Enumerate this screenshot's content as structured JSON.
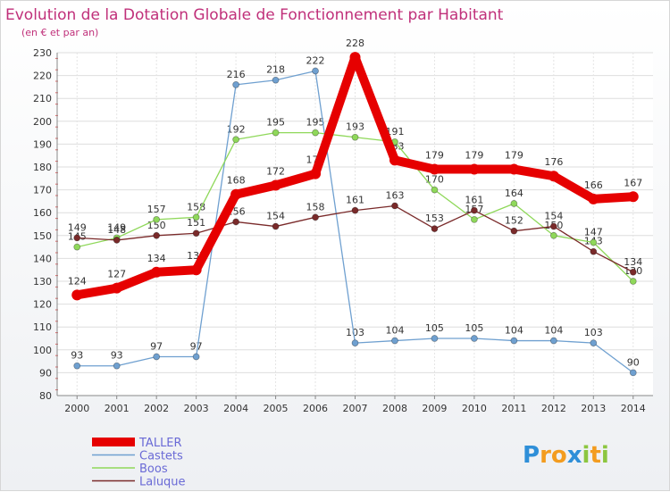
{
  "chart_data": {
    "type": "line",
    "title": "Evolution de la Dotation Globale de Fonctionnement par Habitant",
    "subtitle": "(en € et par an)",
    "categories": [
      "2000",
      "2001",
      "2002",
      "2003",
      "2004",
      "2005",
      "2006",
      "2007",
      "2008",
      "2009",
      "2010",
      "2011",
      "2012",
      "2013",
      "2014"
    ],
    "ylim": [
      80,
      230
    ],
    "yticks": [
      80,
      90,
      100,
      110,
      120,
      130,
      140,
      150,
      160,
      170,
      180,
      190,
      200,
      210,
      220,
      230
    ],
    "grid": true,
    "legend_position": "bottom-left",
    "series": [
      {
        "name": "TALLER",
        "color": "#e60000",
        "values": [
          124,
          127,
          134,
          135,
          168,
          172,
          177,
          228,
          183,
          179,
          179,
          179,
          176,
          166,
          167
        ]
      },
      {
        "name": "Castets",
        "color": "#6fa0d0",
        "values": [
          93,
          93,
          97,
          97,
          216,
          218,
          222,
          103,
          104,
          105,
          105,
          104,
          104,
          103,
          90
        ]
      },
      {
        "name": "Boos",
        "color": "#8fd85a",
        "values": [
          145,
          149,
          157,
          158,
          192,
          195,
          195,
          193,
          191,
          170,
          157,
          164,
          150,
          147,
          130
        ]
      },
      {
        "name": "Laluque",
        "color": "#7a2a2a",
        "values": [
          149,
          148,
          150,
          151,
          156,
          154,
          158,
          161,
          163,
          153,
          161,
          152,
          154,
          143,
          134
        ]
      }
    ]
  },
  "branding": {
    "logo_letters": [
      "P",
      "r",
      "o",
      "x",
      "i",
      "t",
      "i"
    ],
    "logo_colors": [
      "#2f8fd8",
      "#f39c1f",
      "#f39c1f",
      "#2f8fd8",
      "#8cc63f",
      "#f39c1f",
      "#8cc63f"
    ]
  }
}
